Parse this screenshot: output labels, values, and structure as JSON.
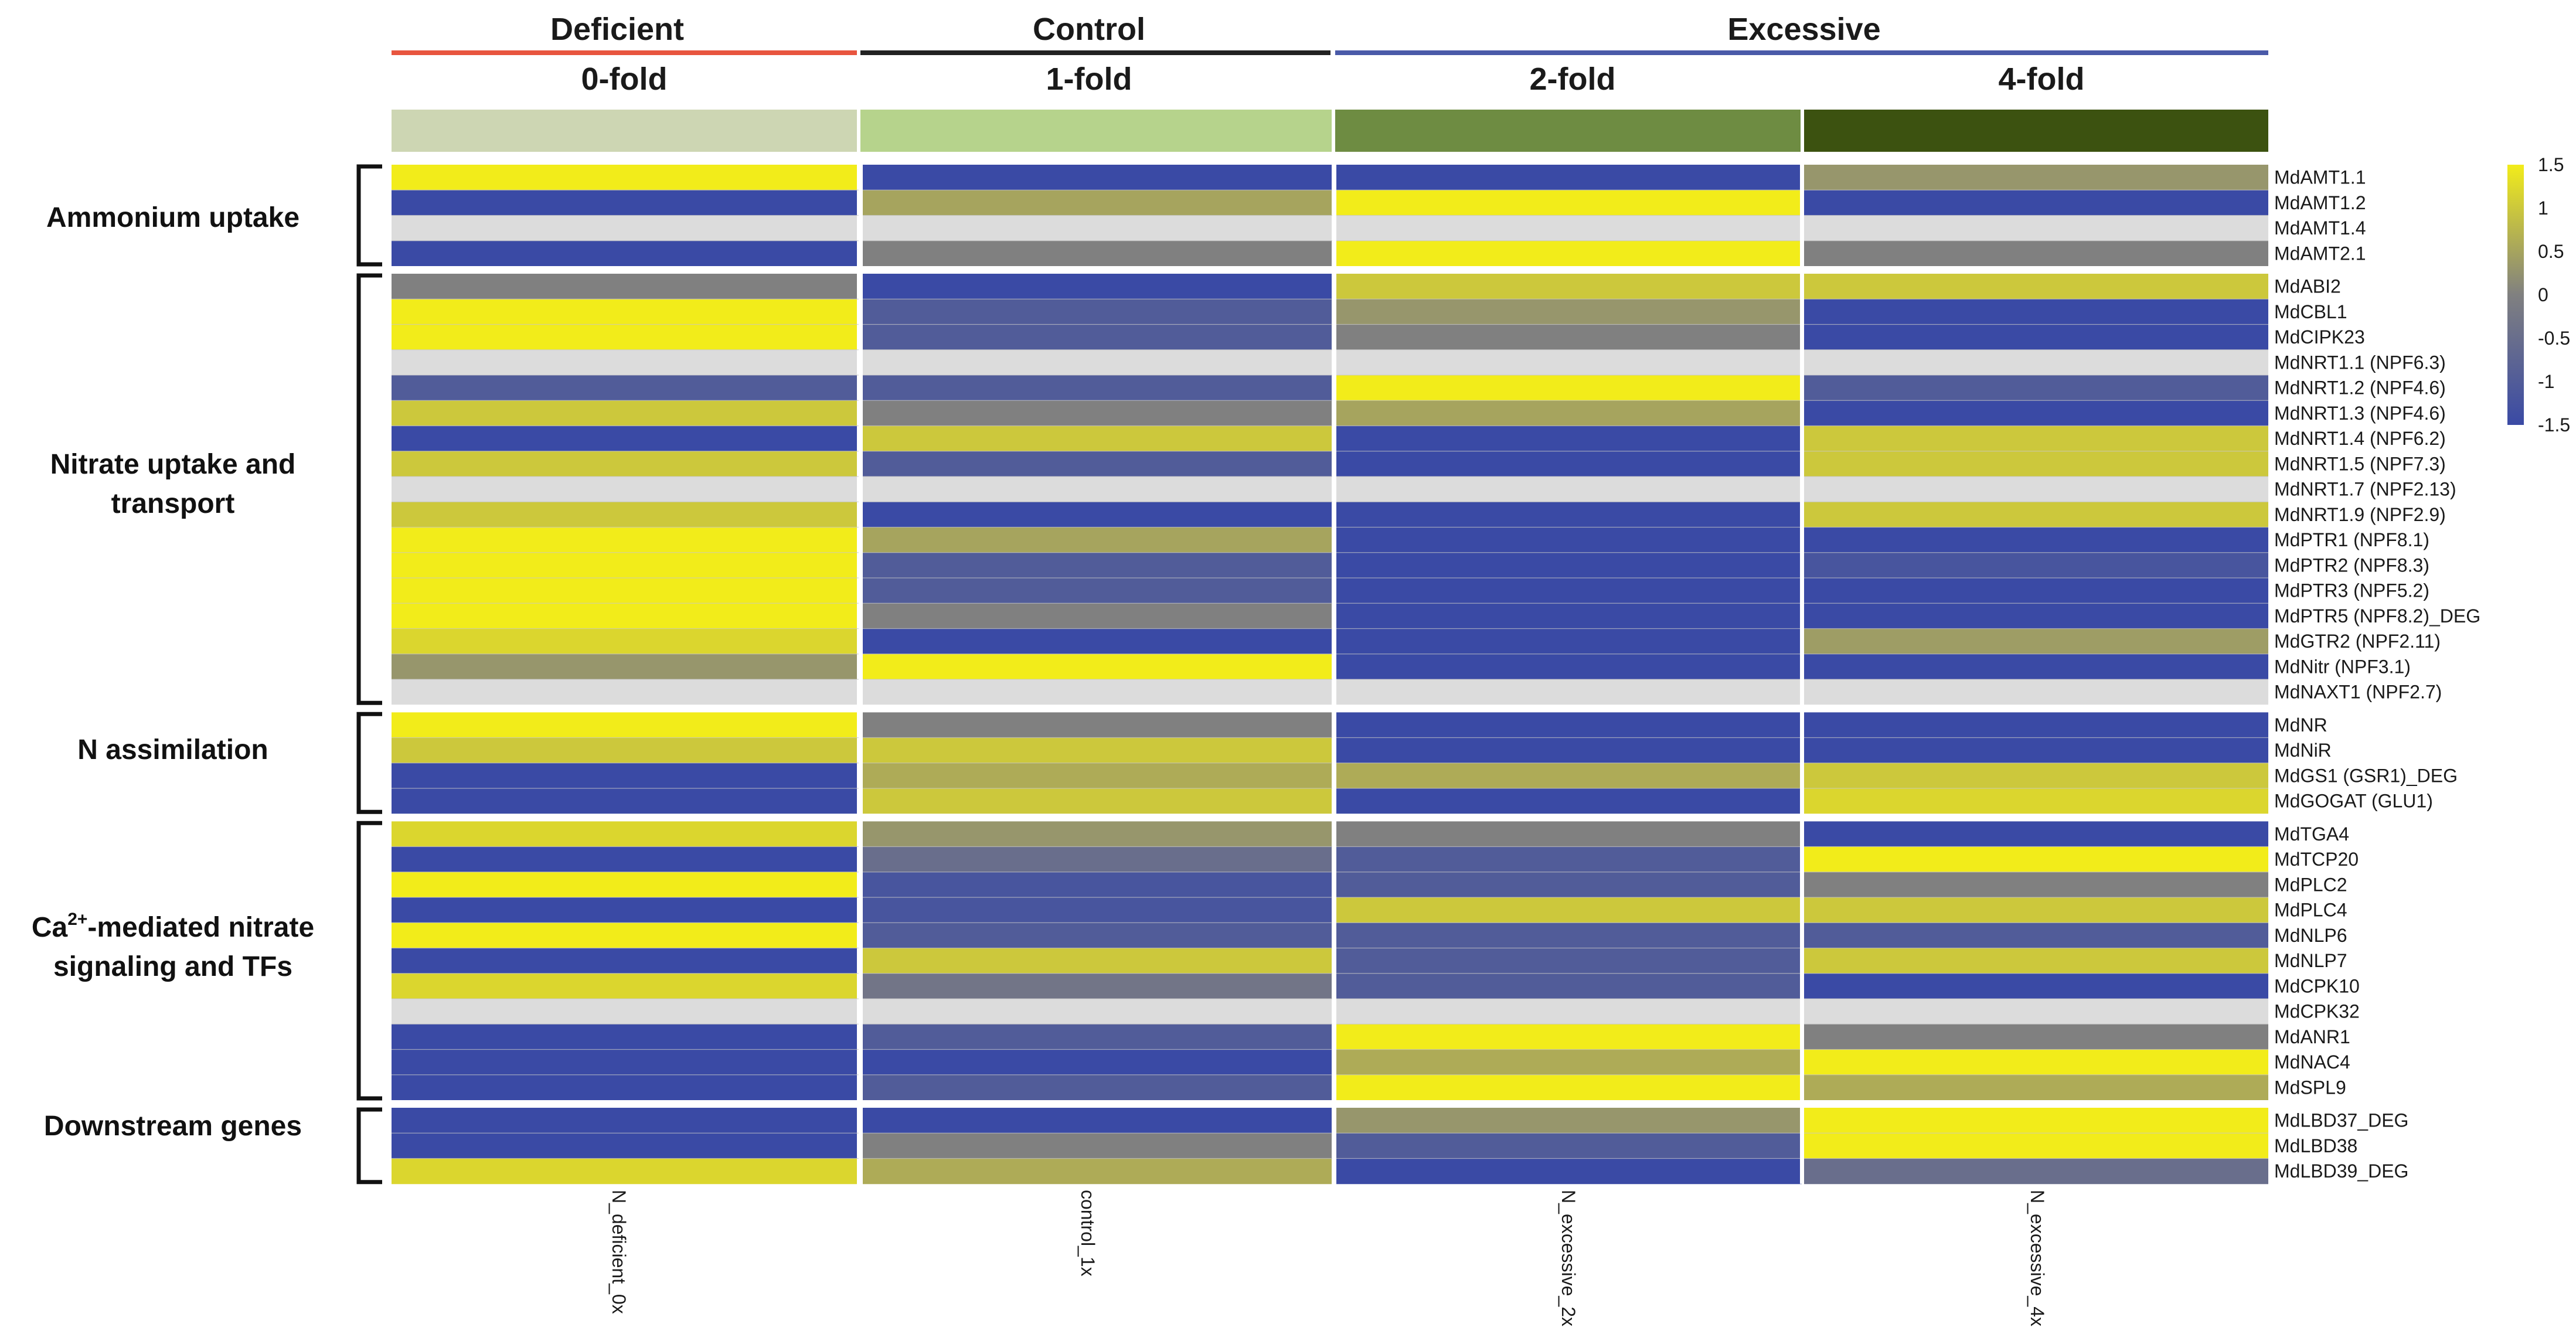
{
  "chart_data": {
    "type": "heatmap",
    "title": "",
    "conditions": [
      {
        "label": "Deficient",
        "color": "#e8553f"
      },
      {
        "label": "Control",
        "color": "#222222"
      },
      {
        "label": "Excessive",
        "color": "#4a5aa8"
      }
    ],
    "folds": [
      "0-fold",
      "1-fold",
      "2-fold",
      "4-fold"
    ],
    "fold_colors": [
      "#cdd6b3",
      "#b6d38c",
      "#6e8c42",
      "#3c5210"
    ],
    "columns": [
      "N_deficient_0x",
      "control_1x",
      "N_excessive_2x",
      "N_excessive_4x"
    ],
    "groups": [
      {
        "label": "Ammonium uptake",
        "rows": 4
      },
      {
        "label": "Nitrate uptake and transport",
        "rows": 17
      },
      {
        "label": "N assimilation",
        "rows": 4
      },
      {
        "label": "Ca2+-mediated nitrate signaling and TFs",
        "rows": 11
      },
      {
        "label": "Downstream genes",
        "rows": 3
      }
    ],
    "group_text": {
      "ammonium": "Ammonium uptake",
      "nitrate_1": "Nitrate uptake and",
      "nitrate_2": "transport",
      "n_assim": "N assimilation",
      "ca_pre": "Ca",
      "ca_sup": "2+",
      "ca_post": "-mediated nitrate",
      "ca_2": "signaling and TFs",
      "downstream": "Downstream genes"
    },
    "genes": [
      "MdAMT1.1",
      "MdAMT1.2",
      "MdAMT1.4",
      "MdAMT2.1",
      "MdABI2",
      "MdCBL1",
      "MdCIPK23",
      "MdNRT1.1 (NPF6.3)",
      "MdNRT1.2 (NPF4.6)",
      "MdNRT1.3 (NPF4.6)",
      "MdNRT1.4 (NPF6.2)",
      "MdNRT1.5 (NPF7.3)",
      "MdNRT1.7 (NPF2.13)",
      "MdNRT1.9 (NPF2.9)",
      "MdPTR1 (NPF8.1)",
      "MdPTR2 (NPF8.3)",
      "MdPTR3 (NPF5.2)",
      "MdPTR5 (NPF8.2)_DEG",
      "MdGTR2 (NPF2.11)",
      "MdNitr (NPF3.1)",
      "MdNAXT1 (NPF2.7)",
      "MdNR",
      "MdNiR",
      "MdGS1 (GSR1)_DEG",
      "MdGOGAT (GLU1)",
      "MdTGA4",
      "MdTCP20",
      "MdPLC2",
      "MdPLC4",
      "MdNLP6",
      "MdNLP7",
      "MdCPK10",
      "MdCPK32",
      "MdANR1",
      "MdNAC4",
      "MdSPL9",
      "MdLBD37_DEG",
      "MdLBD38",
      "MdLBD39_DEG"
    ],
    "values": [
      [
        1.5,
        -1.5,
        -1.5,
        0.3
      ],
      [
        -1.5,
        0.5,
        1.5,
        -1.5
      ],
      [
        null,
        null,
        null,
        null
      ],
      [
        -1.5,
        0.0,
        1.5,
        0.0
      ],
      [
        0.0,
        -1.5,
        1.0,
        1.0
      ],
      [
        1.5,
        -1.0,
        0.3,
        -1.5
      ],
      [
        1.5,
        -1.0,
        0.0,
        -1.5
      ],
      [
        null,
        null,
        null,
        null
      ],
      [
        -1.0,
        -1.0,
        1.5,
        -1.0
      ],
      [
        1.0,
        0.0,
        0.5,
        -1.5
      ],
      [
        -1.5,
        1.0,
        -1.5,
        1.0
      ],
      [
        1.0,
        -1.0,
        -1.5,
        1.0
      ],
      [
        null,
        null,
        null,
        null
      ],
      [
        1.0,
        -1.5,
        -1.5,
        1.0
      ],
      [
        1.5,
        0.5,
        -1.5,
        -1.5
      ],
      [
        1.5,
        -1.0,
        -1.5,
        -1.2
      ],
      [
        1.5,
        -1.0,
        -1.5,
        -1.5
      ],
      [
        1.5,
        0.0,
        -1.5,
        -1.5
      ],
      [
        1.2,
        -1.5,
        -1.5,
        0.4
      ],
      [
        0.3,
        1.5,
        -1.5,
        -1.5
      ],
      [
        null,
        null,
        null,
        null
      ],
      [
        1.5,
        0.0,
        -1.5,
        -1.5
      ],
      [
        1.0,
        1.0,
        -1.5,
        -1.5
      ],
      [
        -1.5,
        0.6,
        0.6,
        1.0
      ],
      [
        -1.5,
        1.0,
        -1.5,
        1.2
      ],
      [
        1.2,
        0.3,
        0.0,
        -1.5
      ],
      [
        -1.5,
        -0.5,
        -1.0,
        1.5
      ],
      [
        1.5,
        -1.2,
        -1.0,
        0.0
      ],
      [
        -1.5,
        -1.2,
        1.0,
        1.0
      ],
      [
        1.5,
        -1.0,
        -1.0,
        -1.0
      ],
      [
        -1.5,
        1.0,
        -1.0,
        1.0
      ],
      [
        1.2,
        -0.3,
        -1.0,
        -1.5
      ],
      [
        null,
        null,
        null,
        null
      ],
      [
        -1.5,
        -1.0,
        1.5,
        0.0
      ],
      [
        -1.5,
        -1.5,
        0.6,
        1.5
      ],
      [
        -1.5,
        -1.0,
        1.5,
        0.6
      ],
      [
        -1.5,
        -1.5,
        0.3,
        1.5
      ],
      [
        -1.5,
        0.0,
        -1.0,
        1.5
      ],
      [
        1.2,
        0.6,
        -1.5,
        -0.5
      ]
    ],
    "color_scale": {
      "min": -1.5,
      "max": 1.5,
      "low": "#3a4aa5",
      "mid": "#808080",
      "high": "#f2ec1a",
      "na": "#dcdcdc"
    },
    "colorbar_ticks": [
      "1.5",
      "1",
      "0.5",
      "0",
      "-0.5",
      "-1",
      "-1.5"
    ],
    "colorbar_values": [
      1.5,
      1,
      0.5,
      0,
      -0.5,
      -1,
      -1.5
    ]
  }
}
